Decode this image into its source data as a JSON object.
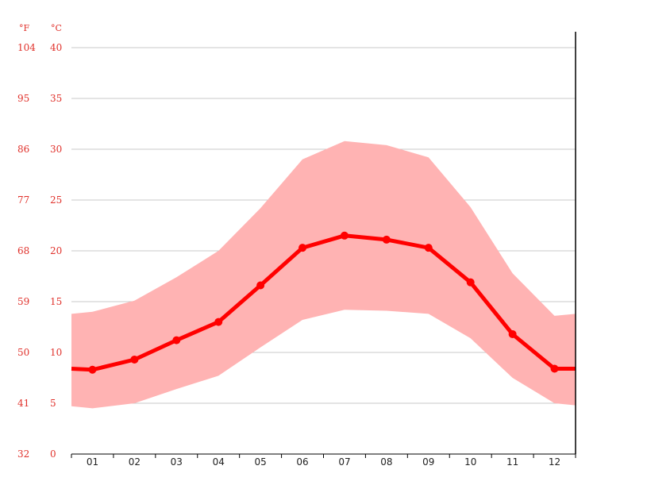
{
  "chart_data": {
    "type": "line",
    "title": "",
    "xlabel": "",
    "ylabel": "",
    "units": {
      "fahrenheit": "°F",
      "celsius": "°C"
    },
    "categories": [
      "01",
      "02",
      "03",
      "04",
      "05",
      "06",
      "07",
      "08",
      "09",
      "10",
      "11",
      "12"
    ],
    "ylim": [
      0,
      40
    ],
    "y_ticks_c": [
      "0",
      "5",
      "10",
      "15",
      "20",
      "25",
      "30",
      "35",
      "40"
    ],
    "y_ticks_f": [
      "32",
      "41",
      "50",
      "59",
      "68",
      "77",
      "86",
      "95",
      "104"
    ],
    "grid": true,
    "series": [
      {
        "role": "mean",
        "color": "#ff0000",
        "values": [
          8.3,
          9.3,
          11.2,
          13.0,
          16.6,
          20.3,
          21.5,
          21.1,
          20.3,
          16.9,
          11.8,
          8.4
        ]
      },
      {
        "role": "max",
        "color": "#ffb3b3",
        "values": [
          14.0,
          15.1,
          17.4,
          20.0,
          24.2,
          29.0,
          30.8,
          30.4,
          29.2,
          24.3,
          17.8,
          13.6
        ]
      },
      {
        "role": "min",
        "color": "#ffb3b3",
        "values": [
          4.5,
          5.0,
          6.4,
          7.7,
          10.5,
          13.2,
          14.2,
          14.1,
          13.8,
          11.4,
          7.5,
          5.0
        ]
      }
    ],
    "edge_values": {
      "mean": [
        8.4,
        8.4
      ],
      "max": [
        13.8,
        13.8
      ],
      "min": [
        4.7,
        4.8
      ]
    }
  }
}
